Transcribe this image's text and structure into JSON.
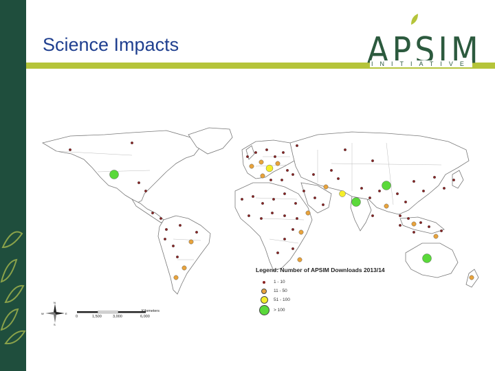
{
  "slide": {
    "title": "Science Impacts"
  },
  "logo": {
    "main": "APSIM",
    "subtitle": "INITIATIVE",
    "accent_color": "#b5c43a",
    "brand_color": "#2c5a3e"
  },
  "map": {
    "legend_title": "Legend: Number of APSIM Downloads 2013/14",
    "legend_items": [
      {
        "label": "1 - 10",
        "color": "#8b2323"
      },
      {
        "label": "11 - 50",
        "color": "#e8a33c"
      },
      {
        "label": "51 - 100",
        "color": "#f5ee2a"
      },
      {
        "label": "> 100",
        "color": "#5ad93a"
      }
    ],
    "scale_unit": "Kilometers",
    "scale_ticks": [
      "0",
      "1,500",
      "3,000",
      "6,000"
    ],
    "compass_letters": [
      "N",
      "S",
      "E",
      "W"
    ]
  },
  "colors": {
    "sidebar": "#1f4e3d",
    "title": "#1f3f8f",
    "rule": "#b5c43a"
  }
}
